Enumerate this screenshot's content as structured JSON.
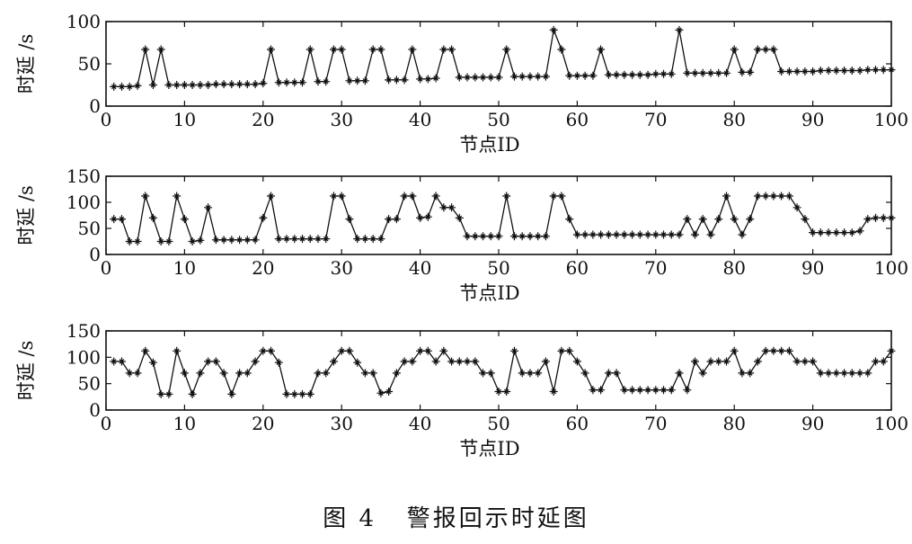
{
  "caption": "图 4   警报回示时延图",
  "chart_data": [
    {
      "type": "line",
      "marker": "star",
      "xlabel": "节点ID",
      "ylabel": "时延 /s",
      "xlim": [
        0,
        100
      ],
      "ylim": [
        0,
        100
      ],
      "xticks": [
        0,
        10,
        20,
        30,
        40,
        50,
        60,
        70,
        80,
        90,
        100
      ],
      "yticks": [
        0,
        50,
        100
      ],
      "x": [
        1,
        2,
        3,
        4,
        5,
        6,
        7,
        8,
        9,
        10,
        11,
        12,
        13,
        14,
        15,
        16,
        17,
        18,
        19,
        20,
        21,
        22,
        23,
        24,
        25,
        26,
        27,
        28,
        29,
        30,
        31,
        32,
        33,
        34,
        35,
        36,
        37,
        38,
        39,
        40,
        41,
        42,
        43,
        44,
        45,
        46,
        47,
        48,
        49,
        50,
        51,
        52,
        53,
        54,
        55,
        56,
        57,
        58,
        59,
        60,
        61,
        62,
        63,
        64,
        65,
        66,
        67,
        68,
        69,
        70,
        71,
        72,
        73,
        74,
        75,
        76,
        77,
        78,
        79,
        80,
        81,
        82,
        83,
        84,
        85,
        86,
        87,
        88,
        89,
        90,
        91,
        92,
        93,
        94,
        95,
        96,
        97,
        98,
        99,
        100
      ],
      "values": [
        23,
        23,
        23,
        24,
        67,
        25,
        67,
        25,
        25,
        25,
        25,
        25,
        25,
        26,
        26,
        26,
        26,
        26,
        26,
        27,
        67,
        28,
        28,
        28,
        28,
        67,
        29,
        29,
        67,
        67,
        30,
        30,
        30,
        67,
        67,
        31,
        31,
        31,
        67,
        32,
        32,
        33,
        67,
        67,
        34,
        34,
        34,
        34,
        34,
        34,
        67,
        35,
        35,
        35,
        35,
        35,
        90,
        67,
        36,
        36,
        36,
        36,
        67,
        37,
        37,
        37,
        37,
        37,
        37,
        38,
        38,
        38,
        90,
        39,
        39,
        39,
        39,
        39,
        39,
        67,
        40,
        40,
        67,
        67,
        67,
        41,
        41,
        41,
        41,
        41,
        42,
        42,
        42,
        42,
        42,
        42,
        43,
        43,
        43,
        43
      ]
    },
    {
      "type": "line",
      "marker": "star",
      "xlabel": "节点ID",
      "ylabel": "时延 /s",
      "xlim": [
        0,
        100
      ],
      "ylim": [
        0,
        150
      ],
      "xticks": [
        0,
        10,
        20,
        30,
        40,
        50,
        60,
        70,
        80,
        90,
        100
      ],
      "yticks": [
        0,
        50,
        100,
        150
      ],
      "x": [
        1,
        2,
        3,
        4,
        5,
        6,
        7,
        8,
        9,
        10,
        11,
        12,
        13,
        14,
        15,
        16,
        17,
        18,
        19,
        20,
        21,
        22,
        23,
        24,
        25,
        26,
        27,
        28,
        29,
        30,
        31,
        32,
        33,
        34,
        35,
        36,
        37,
        38,
        39,
        40,
        41,
        42,
        43,
        44,
        45,
        46,
        47,
        48,
        49,
        50,
        51,
        52,
        53,
        54,
        55,
        56,
        57,
        58,
        59,
        60,
        61,
        62,
        63,
        64,
        65,
        66,
        67,
        68,
        69,
        70,
        71,
        72,
        73,
        74,
        75,
        76,
        77,
        78,
        79,
        80,
        81,
        82,
        83,
        84,
        85,
        86,
        87,
        88,
        89,
        90,
        91,
        92,
        93,
        94,
        95,
        96,
        97,
        98,
        99,
        100
      ],
      "values": [
        68,
        68,
        25,
        25,
        112,
        70,
        25,
        25,
        112,
        68,
        25,
        27,
        90,
        28,
        28,
        28,
        28,
        28,
        28,
        70,
        112,
        30,
        30,
        30,
        30,
        30,
        30,
        30,
        112,
        112,
        68,
        30,
        30,
        30,
        30,
        68,
        68,
        112,
        112,
        70,
        72,
        112,
        90,
        90,
        70,
        35,
        35,
        35,
        35,
        35,
        112,
        35,
        35,
        35,
        35,
        35,
        112,
        112,
        68,
        38,
        38,
        38,
        38,
        38,
        38,
        38,
        38,
        38,
        38,
        38,
        38,
        38,
        38,
        68,
        38,
        68,
        38,
        68,
        112,
        68,
        38,
        68,
        112,
        112,
        112,
        112,
        112,
        90,
        68,
        42,
        42,
        42,
        42,
        42,
        42,
        45,
        68,
        70,
        70,
        70
      ]
    },
    {
      "type": "line",
      "marker": "star",
      "xlabel": "节点ID",
      "ylabel": "时延 /s",
      "xlim": [
        0,
        100
      ],
      "ylim": [
        0,
        150
      ],
      "xticks": [
        0,
        10,
        20,
        30,
        40,
        50,
        60,
        70,
        80,
        90,
        100
      ],
      "yticks": [
        0,
        50,
        100,
        150
      ],
      "x": [
        1,
        2,
        3,
        4,
        5,
        6,
        7,
        8,
        9,
        10,
        11,
        12,
        13,
        14,
        15,
        16,
        17,
        18,
        19,
        20,
        21,
        22,
        23,
        24,
        25,
        26,
        27,
        28,
        29,
        30,
        31,
        32,
        33,
        34,
        35,
        36,
        37,
        38,
        39,
        40,
        41,
        42,
        43,
        44,
        45,
        46,
        47,
        48,
        49,
        50,
        51,
        52,
        53,
        54,
        55,
        56,
        57,
        58,
        59,
        60,
        61,
        62,
        63,
        64,
        65,
        66,
        67,
        68,
        69,
        70,
        71,
        72,
        73,
        74,
        75,
        76,
        77,
        78,
        79,
        80,
        81,
        82,
        83,
        84,
        85,
        86,
        87,
        88,
        89,
        90,
        91,
        92,
        93,
        94,
        95,
        96,
        97,
        98,
        99,
        100
      ],
      "values": [
        92,
        92,
        70,
        70,
        112,
        90,
        30,
        30,
        112,
        70,
        30,
        70,
        92,
        92,
        70,
        30,
        70,
        70,
        92,
        112,
        112,
        90,
        30,
        30,
        30,
        30,
        70,
        70,
        92,
        112,
        112,
        90,
        70,
        70,
        32,
        35,
        70,
        92,
        92,
        112,
        112,
        92,
        112,
        92,
        92,
        92,
        92,
        70,
        70,
        35,
        35,
        112,
        70,
        70,
        70,
        92,
        35,
        112,
        112,
        92,
        70,
        38,
        38,
        70,
        70,
        38,
        38,
        38,
        38,
        38,
        38,
        38,
        70,
        38,
        92,
        70,
        92,
        92,
        92,
        112,
        70,
        70,
        92,
        112,
        112,
        112,
        112,
        92,
        92,
        92,
        70,
        70,
        70,
        70,
        70,
        70,
        70,
        92,
        92,
        112
      ]
    }
  ]
}
